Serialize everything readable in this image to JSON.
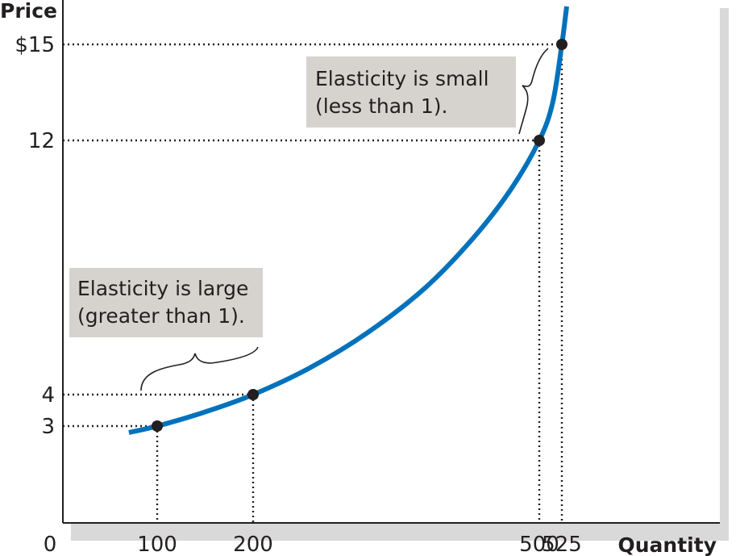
{
  "chart_data": {
    "type": "line",
    "xlabel": "Quantity",
    "ylabel": "Price",
    "xlim": [
      0,
      600
    ],
    "ylim": [
      0,
      16
    ],
    "x_ticks": [
      {
        "value": 0,
        "label": "0"
      },
      {
        "value": 100,
        "label": "100"
      },
      {
        "value": 200,
        "label": "200"
      },
      {
        "value": 500,
        "label": "500"
      },
      {
        "value": 525,
        "label": "525"
      }
    ],
    "y_ticks": [
      {
        "value": 3,
        "label": "3"
      },
      {
        "value": 4,
        "label": "4"
      },
      {
        "value": 12,
        "label": "12"
      },
      {
        "value": 15,
        "label": "$15"
      }
    ],
    "curve_color": "#0072bc",
    "curve_points": [
      {
        "x": 70,
        "y": 2.8
      },
      {
        "x": 100,
        "y": 3
      },
      {
        "x": 150,
        "y": 3.45
      },
      {
        "x": 200,
        "y": 4
      },
      {
        "x": 260,
        "y": 4.85
      },
      {
        "x": 320,
        "y": 5.95
      },
      {
        "x": 380,
        "y": 7.35
      },
      {
        "x": 430,
        "y": 8.9
      },
      {
        "x": 470,
        "y": 10.45
      },
      {
        "x": 500,
        "y": 12
      },
      {
        "x": 515,
        "y": 13.2
      },
      {
        "x": 525,
        "y": 15
      },
      {
        "x": 530,
        "y": 16.3
      }
    ],
    "points": [
      {
        "x": 100,
        "y": 3
      },
      {
        "x": 200,
        "y": 4
      },
      {
        "x": 500,
        "y": 12
      },
      {
        "x": 525,
        "y": 15
      }
    ],
    "annotations": [
      {
        "id": "large",
        "lines": [
          "Elasticity is large",
          "(greater than 1)."
        ],
        "range_x": [
          100,
          200
        ]
      },
      {
        "id": "small",
        "lines": [
          "Elasticity is small",
          "(less than 1)."
        ],
        "range_y": [
          12,
          15
        ]
      }
    ]
  }
}
